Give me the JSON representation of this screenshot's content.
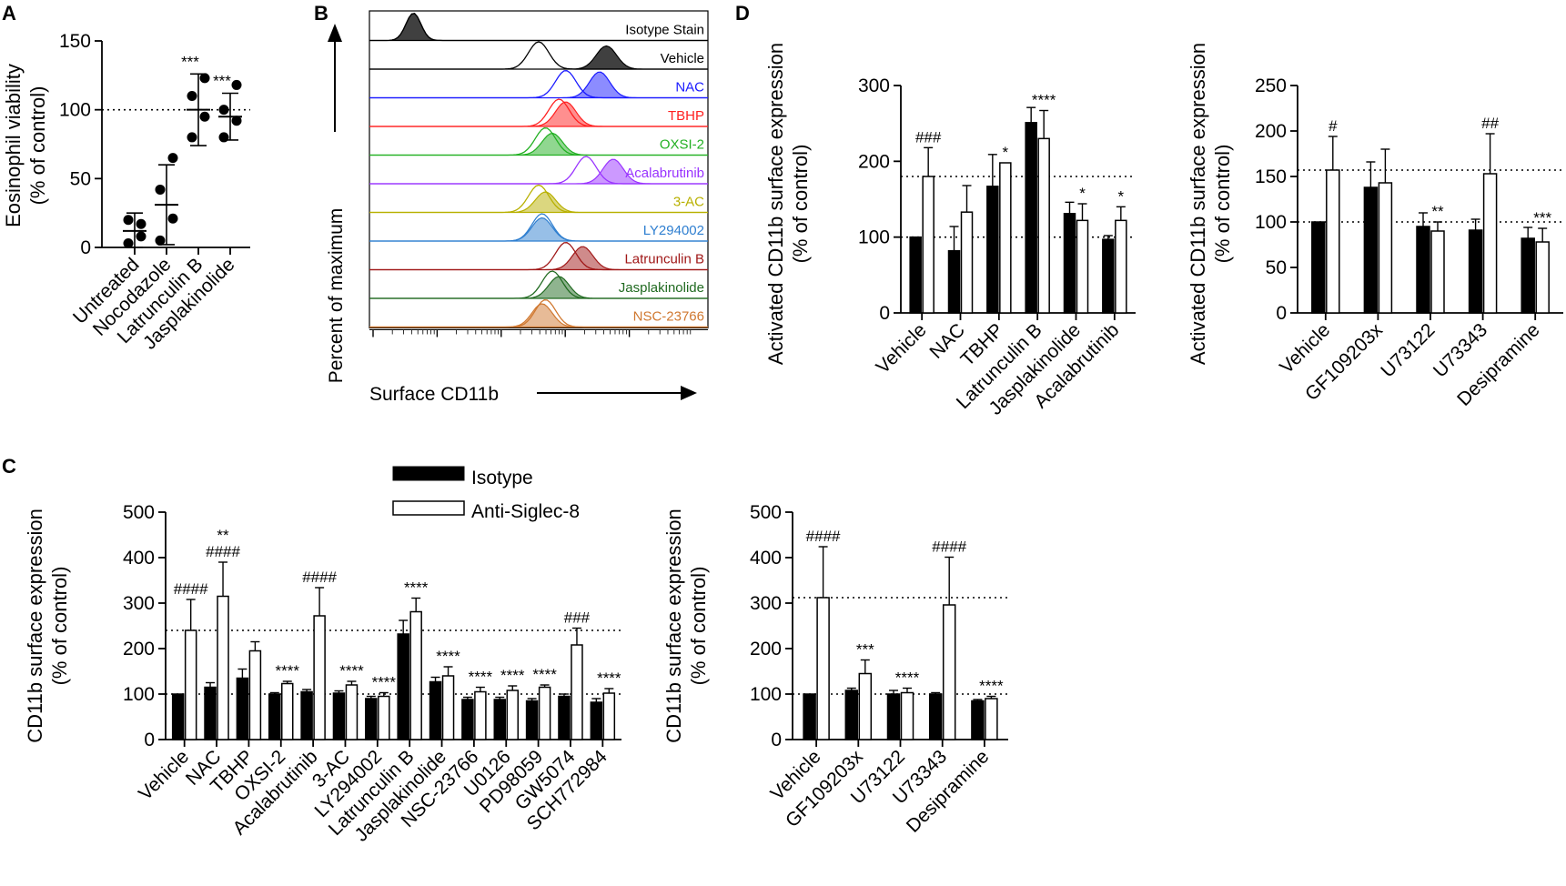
{
  "panel_labels": [
    "A",
    "B",
    "C",
    "D"
  ],
  "chart_data": [
    {
      "id": "A",
      "type": "scatter",
      "title": "",
      "ylabel": "Eosinophil viability (% of control)",
      "ylabel_lines": [
        "Eosinophil viability",
        "(% of control)"
      ],
      "ylim": [
        0,
        150
      ],
      "yticks": [
        0,
        50,
        100,
        150
      ],
      "reference_line": 100,
      "categories": [
        "Untreated",
        "Nocodazole",
        "Latrunculin B",
        "Jasplakinolide"
      ],
      "means": [
        12,
        31,
        100,
        95
      ],
      "errors": [
        13,
        29,
        26,
        17
      ],
      "points": [
        [
          3,
          8,
          20,
          17
        ],
        [
          5,
          21,
          42,
          65
        ],
        [
          80,
          95,
          110,
          123
        ],
        [
          80,
          92,
          100,
          118
        ]
      ],
      "significance": [
        "",
        "",
        "***",
        "***"
      ]
    },
    {
      "id": "B",
      "type": "histogram",
      "xlabel": "Surface CD11b",
      "ylabel": "Percent of maximum",
      "tracks": [
        {
          "name": "Isotype Stain",
          "color": "#000000"
        },
        {
          "name": "Vehicle",
          "color": "#000000"
        },
        {
          "name": "NAC",
          "color": "#1a1aff"
        },
        {
          "name": "TBHP",
          "color": "#ff2020"
        },
        {
          "name": "OXSI-2",
          "color": "#22b022"
        },
        {
          "name": "Acalabrutinib",
          "color": "#9933ff"
        },
        {
          "name": "3-AC",
          "color": "#b8b000"
        },
        {
          "name": "LY294002",
          "color": "#2f7fd0"
        },
        {
          "name": "Latrunculin B",
          "color": "#a01818"
        },
        {
          "name": "Jasplakinolide",
          "color": "#206a20"
        },
        {
          "name": "NSC-23766",
          "color": "#d07830"
        }
      ],
      "peak_positions": [
        0.13,
        0.5,
        0.58,
        0.56,
        0.52,
        0.64,
        0.5,
        0.51,
        0.58,
        0.54,
        0.52
      ],
      "filled_peak_positions": [
        0.13,
        0.7,
        0.68,
        0.58,
        0.54,
        0.72,
        0.52,
        0.51,
        0.63,
        0.56,
        0.51
      ],
      "fill_heights": [
        1.0,
        0.85,
        0.95,
        0.9,
        0.8,
        0.9,
        0.75,
        0.85,
        0.85,
        0.8,
        0.85
      ]
    },
    {
      "id": "C1",
      "type": "bar",
      "ylabel": "CD11b surface expression (% of control)",
      "ylabel_lines": [
        "CD11b surface expression",
        "(% of control)"
      ],
      "ylim": [
        0,
        500
      ],
      "yticks": [
        0,
        100,
        200,
        300,
        400,
        500
      ],
      "reference_lines": [
        100,
        240
      ],
      "categories": [
        "Vehicle",
        "NAC",
        "TBHP",
        "OXSI-2",
        "Acalabrutinib",
        "3-AC",
        "LY294002",
        "Latrunculin B",
        "Jasplakinolide",
        "NSC-23766",
        "U0126",
        "PD98059",
        "GW5074",
        "SCH772984"
      ],
      "series": [
        {
          "name": "Isotype",
          "values": [
            100,
            115,
            135,
            100,
            105,
            102,
            90,
            232,
            127,
            88,
            88,
            85,
            95,
            82
          ],
          "errors": [
            0,
            10,
            20,
            3,
            5,
            5,
            5,
            30,
            10,
            5,
            5,
            5,
            5,
            8
          ]
        },
        {
          "name": "Anti-Siglec-8",
          "values": [
            240,
            315,
            195,
            123,
            272,
            120,
            95,
            281,
            140,
            105,
            108,
            115,
            208,
            102
          ],
          "errors": [
            68,
            75,
            20,
            5,
            62,
            8,
            8,
            30,
            20,
            10,
            10,
            5,
            37,
            10
          ]
        }
      ],
      "significance": [
        "####",
        "**\n####",
        "",
        "****",
        "####",
        "****",
        "****",
        "****",
        "****",
        "****",
        "****",
        "****",
        "###",
        "****"
      ]
    },
    {
      "id": "C2",
      "type": "bar",
      "ylabel": "CD11b surface expression (% of control)",
      "ylabel_lines": [
        "CD11b surface expression",
        "(% of control)"
      ],
      "ylim": [
        0,
        500
      ],
      "yticks": [
        0,
        100,
        200,
        300,
        400,
        500
      ],
      "reference_lines": [
        100,
        312
      ],
      "categories": [
        "Vehicle",
        "GF109203x",
        "U73122",
        "U73343",
        "Desipramine"
      ],
      "series": [
        {
          "name": "Isotype",
          "values": [
            100,
            108,
            100,
            100,
            85
          ],
          "errors": [
            0,
            5,
            8,
            3,
            3
          ]
        },
        {
          "name": "Anti-Siglec-8",
          "values": [
            312,
            145,
            103,
            296,
            90
          ],
          "errors": [
            112,
            30,
            10,
            105,
            5
          ]
        }
      ],
      "significance": [
        "####",
        "***",
        "****",
        "####",
        "****"
      ]
    },
    {
      "id": "D1",
      "type": "bar",
      "ylabel": "Activated CD11b surface expression (% of control)",
      "ylabel_lines": [
        "Activated CD11b surface expression",
        "(% of control)"
      ],
      "ylim": [
        0,
        300
      ],
      "yticks": [
        0,
        100,
        200,
        300
      ],
      "reference_lines": [
        100,
        180
      ],
      "categories": [
        "Vehicle",
        "NAC",
        "TBHP",
        "Latrunculin B",
        "Jasplakinolide",
        "Acalabrutinib"
      ],
      "series": [
        {
          "name": "Isotype",
          "values": [
            100,
            82,
            167,
            251,
            131,
            97
          ],
          "errors": [
            0,
            32,
            42,
            20,
            15,
            5
          ]
        },
        {
          "name": "Anti-Siglec-8",
          "values": [
            180,
            133,
            198,
            230,
            122,
            122
          ],
          "errors": [
            38,
            35,
            0,
            37,
            22,
            18
          ]
        }
      ],
      "significance": [
        "###",
        "",
        "*",
        "****",
        "*",
        "*"
      ]
    },
    {
      "id": "D2",
      "type": "bar",
      "ylabel": "Activated CD11b surface expression (% of control)",
      "ylabel_lines": [
        "Activated CD11b surface expression",
        "(% of control)"
      ],
      "ylim": [
        0,
        250
      ],
      "yticks": [
        0,
        50,
        100,
        150,
        200,
        250
      ],
      "reference_lines": [
        100,
        157
      ],
      "categories": [
        "Vehicle",
        "GF109203x",
        "U73122",
        "U73343",
        "Desipramine"
      ],
      "series": [
        {
          "name": "Isotype",
          "values": [
            100,
            138,
            95,
            91,
            82
          ],
          "errors": [
            0,
            28,
            15,
            12,
            12
          ]
        },
        {
          "name": "Anti-Siglec-8",
          "values": [
            157,
            143,
            90,
            153,
            78
          ],
          "errors": [
            37,
            37,
            10,
            44,
            15
          ]
        }
      ],
      "significance": [
        "#",
        "",
        "**",
        "##",
        "***"
      ]
    }
  ],
  "legend": {
    "isotype_label": "Isotype",
    "siglec_label": "Anti-Siglec-8"
  },
  "colors": {
    "isotype": "#000000",
    "siglec": "#ffffff",
    "axis": "#000000"
  }
}
